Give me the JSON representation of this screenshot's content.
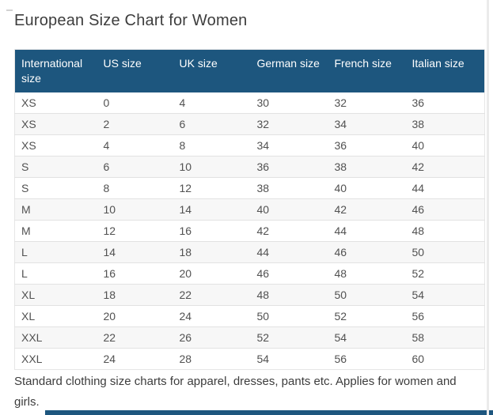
{
  "page": {
    "title": "European Size Chart for Women",
    "footer_text": "Standard clothing size charts for apparel, dresses, pants etc. Applies for women and girls."
  },
  "colors": {
    "header_background": "#1d567e",
    "header_text": "#ffffff",
    "zebra_row_background": "#f7f7f7",
    "row_divider": "#e2e2e2",
    "body_text": "#515151",
    "heading_text": "#3d3d3d"
  },
  "chart_data": {
    "type": "table",
    "title": "European Size Chart for Women",
    "columns": [
      "International size",
      "US size",
      "UK size",
      "German size",
      "French size",
      "Italian size"
    ],
    "rows": [
      [
        "XS",
        "0",
        "4",
        "30",
        "32",
        "36"
      ],
      [
        "XS",
        "2",
        "6",
        "32",
        "34",
        "38"
      ],
      [
        "XS",
        "4",
        "8",
        "34",
        "36",
        "40"
      ],
      [
        "S",
        "6",
        "10",
        "36",
        "38",
        "42"
      ],
      [
        "S",
        "8",
        "12",
        "38",
        "40",
        "44"
      ],
      [
        "M",
        "10",
        "14",
        "40",
        "42",
        "46"
      ],
      [
        "M",
        "12",
        "16",
        "42",
        "44",
        "48"
      ],
      [
        "L",
        "14",
        "18",
        "44",
        "46",
        "50"
      ],
      [
        "L",
        "16",
        "20",
        "46",
        "48",
        "52"
      ],
      [
        "XL",
        "18",
        "22",
        "48",
        "50",
        "54"
      ],
      [
        "XL",
        "20",
        "24",
        "50",
        "52",
        "56"
      ],
      [
        "XXL",
        "22",
        "26",
        "52",
        "54",
        "58"
      ],
      [
        "XXL",
        "24",
        "28",
        "54",
        "56",
        "60"
      ]
    ],
    "note": "Standard clothing size charts for apparel, dresses, pants etc. Applies for women and girls."
  }
}
